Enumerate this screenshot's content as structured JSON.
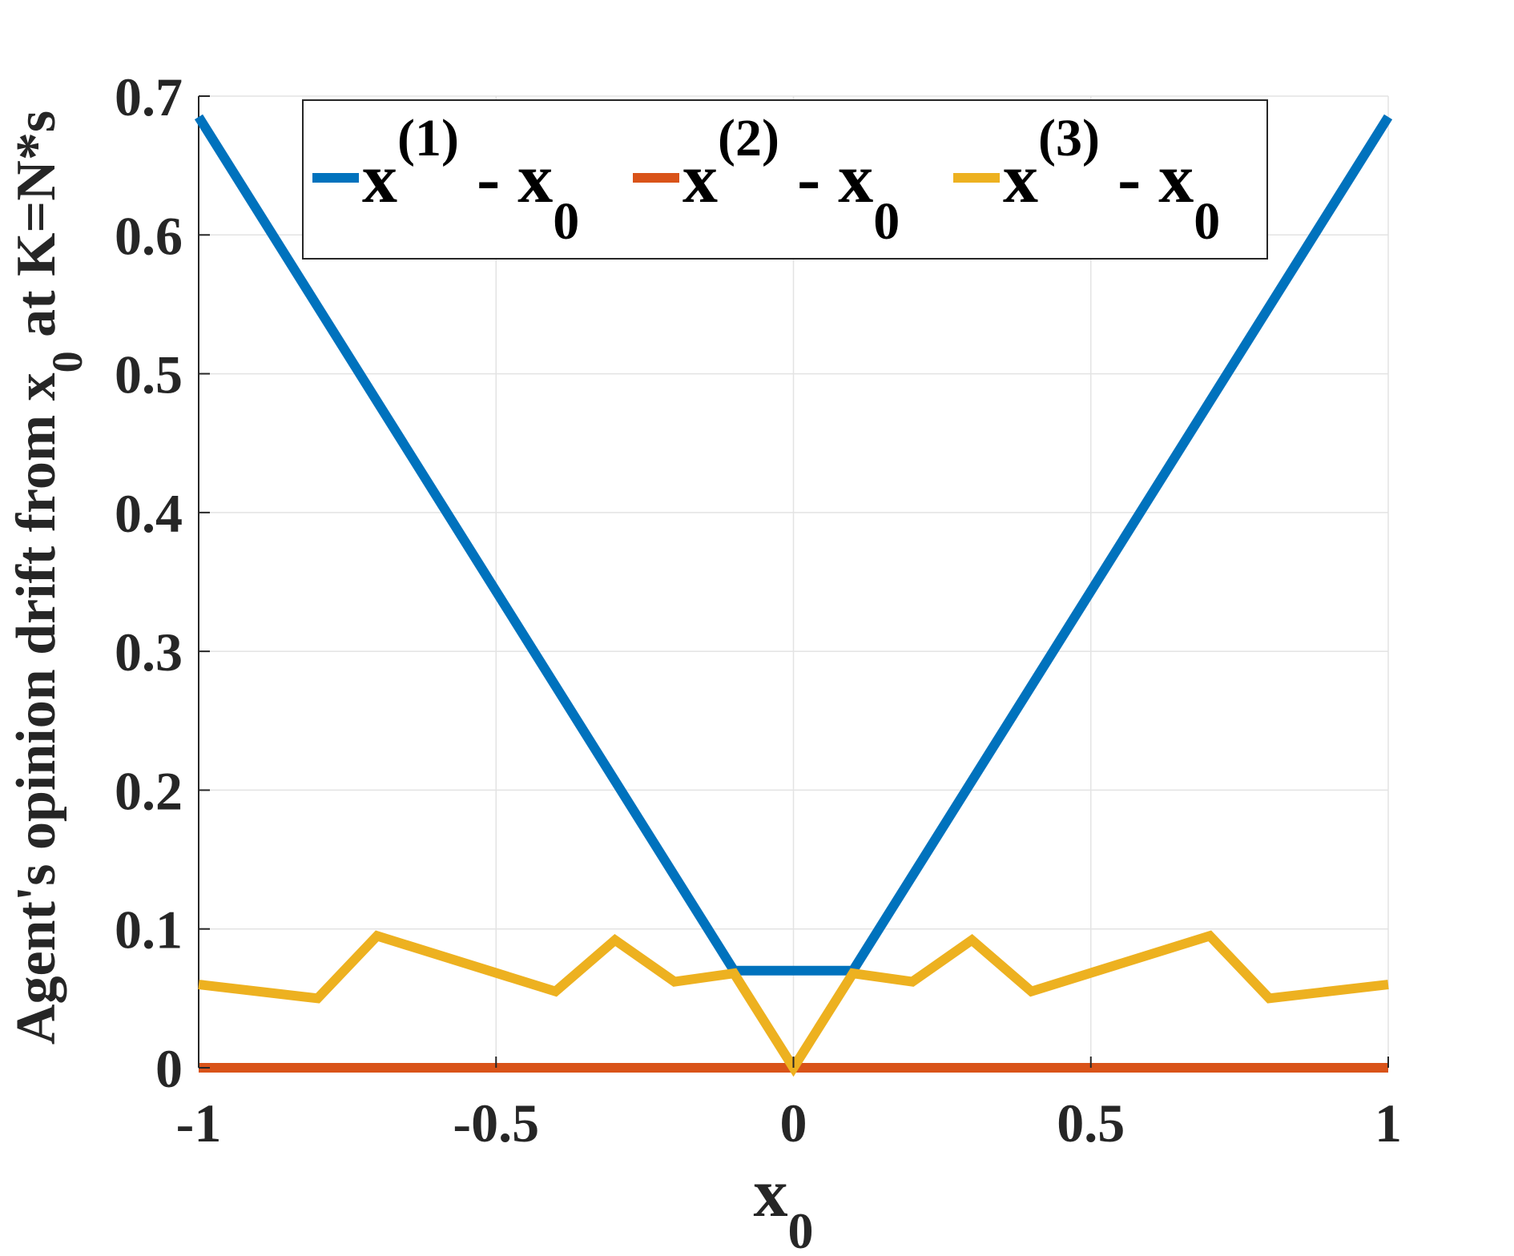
{
  "chart_data": {
    "type": "line",
    "title": "",
    "xlabel": "x",
    "xlabel_sub": "0",
    "ylabel": "Agent's opinion drift from x",
    "ylabel_sub": "0",
    "ylabel_suffix": " at K=N*s",
    "xlim": [
      -1,
      1
    ],
    "ylim": [
      0,
      0.7
    ],
    "xticks": [
      -1,
      -0.5,
      0,
      0.5,
      1
    ],
    "xtick_labels": [
      "-1",
      "-0.5",
      "0",
      "0.5",
      "1"
    ],
    "yticks": [
      0,
      0.1,
      0.2,
      0.3,
      0.4,
      0.5,
      0.6,
      0.7
    ],
    "ytick_labels": [
      "0",
      "0.1",
      "0.2",
      "0.3",
      "0.4",
      "0.5",
      "0.6",
      "0.7"
    ],
    "grid": true,
    "legend_position": "top, horizontal",
    "series": [
      {
        "label_main": "x",
        "label_sup": "(1)",
        "label_mid": " - x",
        "label_sub": "0",
        "color": "#0072BD",
        "x": [
          -1,
          -0.1,
          0.1,
          1
        ],
        "y": [
          0.685,
          0.07,
          0.07,
          0.685
        ]
      },
      {
        "label_main": "x",
        "label_sup": "(2)",
        "label_mid": " - x",
        "label_sub": "0",
        "color": "#D95319",
        "x": [
          -1,
          1
        ],
        "y": [
          0,
          0
        ]
      },
      {
        "label_main": "x",
        "label_sup": "(3)",
        "label_mid": " - x",
        "label_sub": "0",
        "color": "#EDB120",
        "x": [
          -1,
          -0.8,
          -0.7,
          -0.4,
          -0.3,
          -0.2,
          -0.1,
          0,
          0.1,
          0.2,
          0.3,
          0.4,
          0.7,
          0.8,
          1
        ],
        "y": [
          0.06,
          0.05,
          0.095,
          0.055,
          0.092,
          0.062,
          0.068,
          0,
          0.068,
          0.062,
          0.092,
          0.055,
          0.095,
          0.05,
          0.06
        ]
      }
    ]
  }
}
